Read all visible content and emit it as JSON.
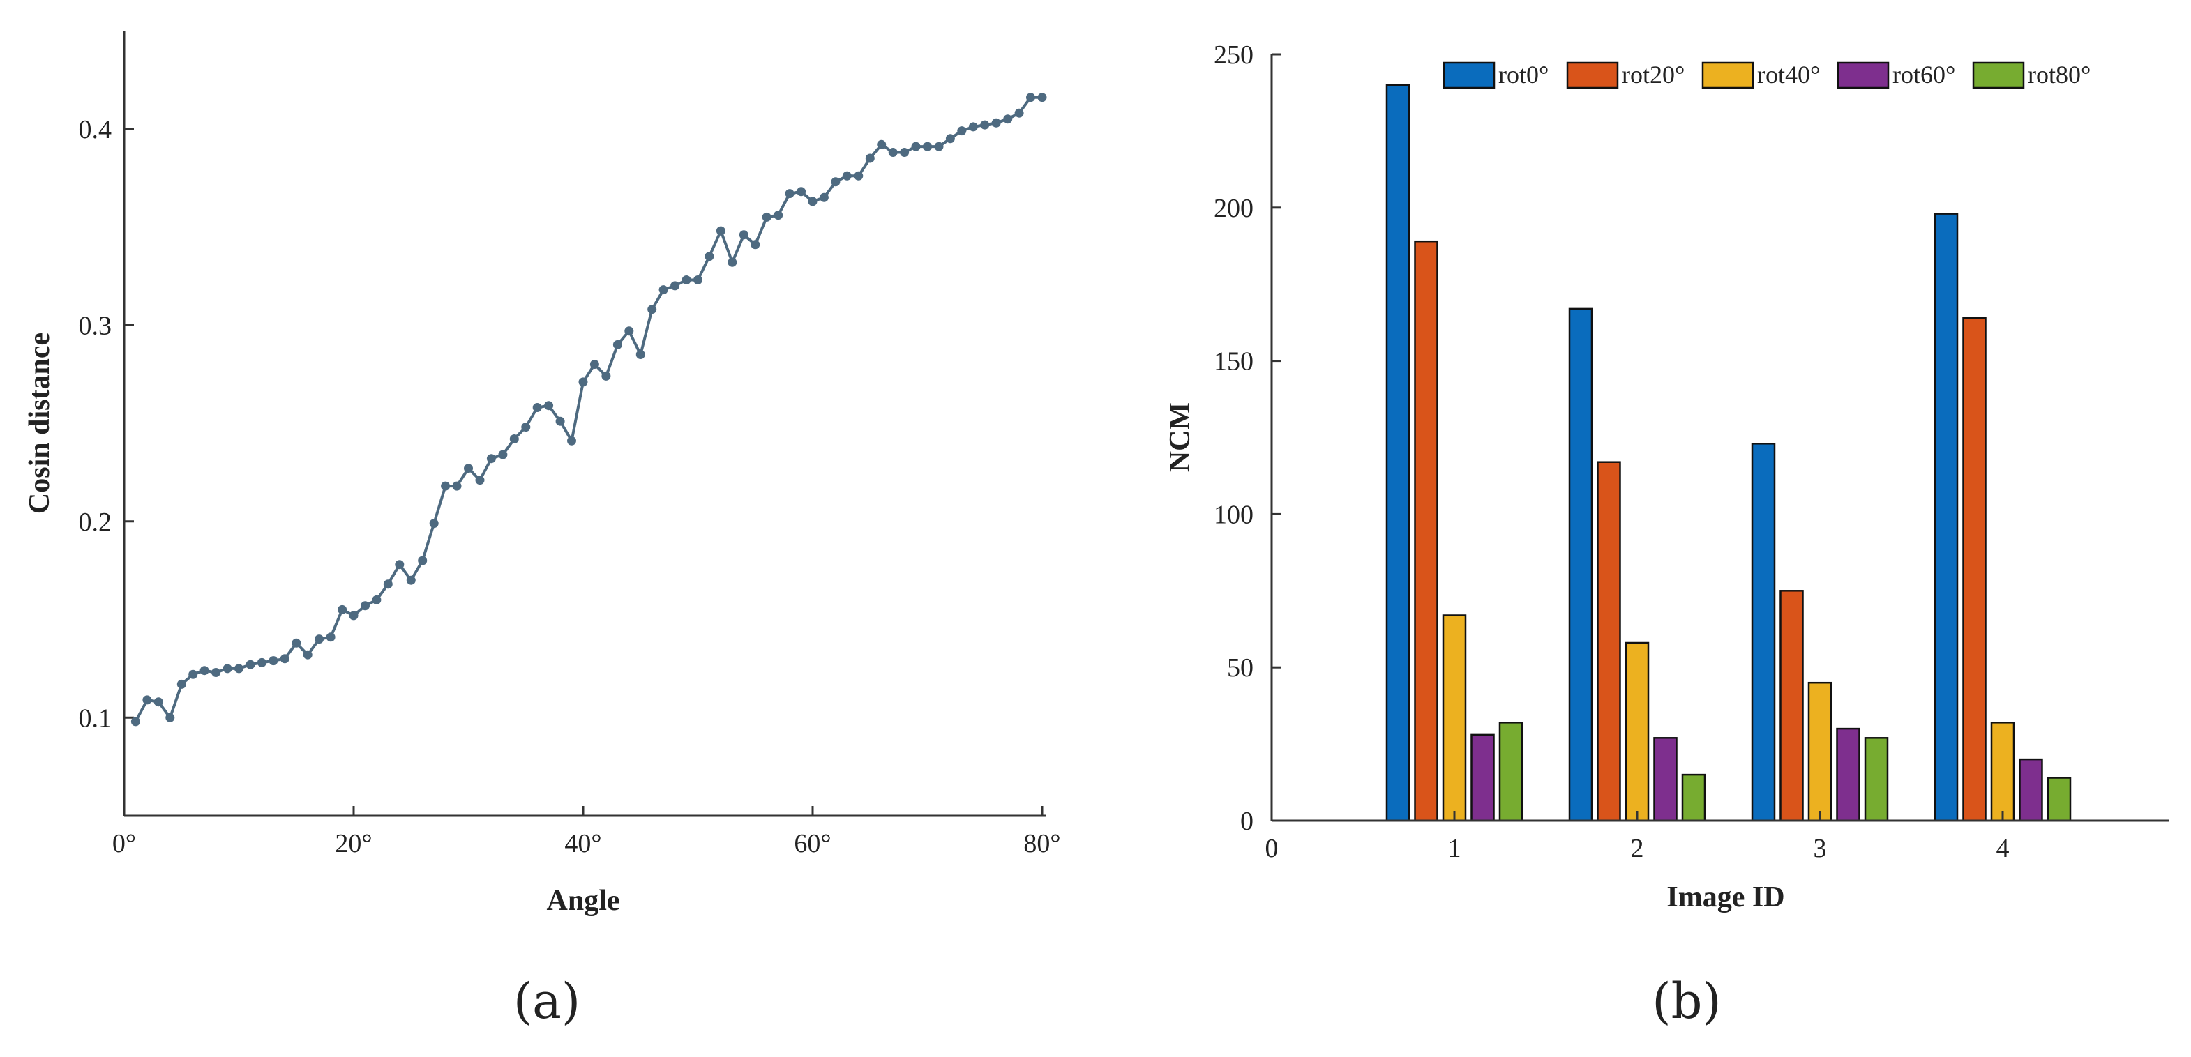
{
  "figure": {
    "panel_a_label": "(a)",
    "panel_b_label": "(b)"
  },
  "chart_data": [
    {
      "type": "line",
      "panel": "(a)",
      "title": "",
      "xlabel": "Angle",
      "ylabel": "Cosin distance",
      "xlim": [
        0,
        80
      ],
      "ylim": [
        0.05,
        0.45
      ],
      "xticks": [
        0,
        20,
        40,
        60,
        80
      ],
      "xtick_labels": [
        "0°",
        "20°",
        "40°",
        "60°",
        "80°"
      ],
      "yticks": [
        0.1,
        0.2,
        0.3,
        0.4
      ],
      "ytick_labels": [
        "0.1",
        "0.2",
        "0.3",
        "0.4"
      ],
      "grid": false,
      "color": "#4e6a80",
      "series": [
        {
          "name": "Cosin distance",
          "x": [
            1,
            2,
            3,
            4,
            5,
            6,
            7,
            8,
            9,
            10,
            11,
            12,
            13,
            14,
            15,
            16,
            17,
            18,
            19,
            20,
            21,
            22,
            23,
            24,
            25,
            26,
            27,
            28,
            29,
            30,
            31,
            32,
            33,
            34,
            35,
            36,
            37,
            38,
            39,
            40,
            41,
            42,
            43,
            44,
            45,
            46,
            47,
            48,
            49,
            50,
            51,
            52,
            53,
            54,
            55,
            56,
            57,
            58,
            59,
            60,
            61,
            62,
            63,
            64,
            65,
            66,
            67,
            68,
            69,
            70,
            71,
            72,
            73,
            74,
            75,
            76,
            77,
            78,
            79,
            80
          ],
          "y": [
            0.098,
            0.109,
            0.108,
            0.1,
            0.117,
            0.122,
            0.124,
            0.123,
            0.125,
            0.125,
            0.127,
            0.128,
            0.129,
            0.13,
            0.138,
            0.132,
            0.14,
            0.141,
            0.155,
            0.152,
            0.157,
            0.16,
            0.168,
            0.178,
            0.17,
            0.18,
            0.199,
            0.218,
            0.218,
            0.227,
            0.221,
            0.232,
            0.234,
            0.242,
            0.248,
            0.258,
            0.259,
            0.251,
            0.241,
            0.271,
            0.28,
            0.274,
            0.29,
            0.297,
            0.285,
            0.308,
            0.318,
            0.32,
            0.323,
            0.323,
            0.335,
            0.348,
            0.332,
            0.346,
            0.341,
            0.355,
            0.356,
            0.367,
            0.368,
            0.363,
            0.365,
            0.373,
            0.376,
            0.376,
            0.385,
            0.392,
            0.388,
            0.388,
            0.391,
            0.391,
            0.391,
            0.395,
            0.399,
            0.401,
            0.402,
            0.403,
            0.405,
            0.408,
            0.416,
            0.416
          ]
        }
      ]
    },
    {
      "type": "bar",
      "panel": "(b)",
      "title": "",
      "xlabel": "Image ID",
      "ylabel": "NCM",
      "xlim": [
        0,
        4.8
      ],
      "ylim": [
        0,
        250
      ],
      "xticks": [
        0,
        1,
        2,
        3,
        4
      ],
      "xtick_labels": [
        "0",
        "1",
        "2",
        "3",
        "4"
      ],
      "yticks": [
        0,
        50,
        100,
        150,
        200,
        250
      ],
      "ytick_labels": [
        "0",
        "50",
        "100",
        "150",
        "200",
        "250"
      ],
      "categories": [
        "1",
        "2",
        "3",
        "4"
      ],
      "legend_position": "top-right",
      "grid": false,
      "series": [
        {
          "name": "rot0°",
          "color": "#0a6cbd",
          "values": [
            240,
            167,
            123,
            198
          ]
        },
        {
          "name": "rot20°",
          "color": "#d9541a",
          "values": [
            189,
            117,
            75,
            164
          ]
        },
        {
          "name": "rot40°",
          "color": "#ecb120",
          "values": [
            67,
            58,
            45,
            32
          ]
        },
        {
          "name": "rot60°",
          "color": "#7e2f8e",
          "values": [
            28,
            27,
            30,
            20
          ]
        },
        {
          "name": "rot80°",
          "color": "#77ac30",
          "values": [
            32,
            15,
            27,
            14
          ]
        }
      ]
    }
  ]
}
